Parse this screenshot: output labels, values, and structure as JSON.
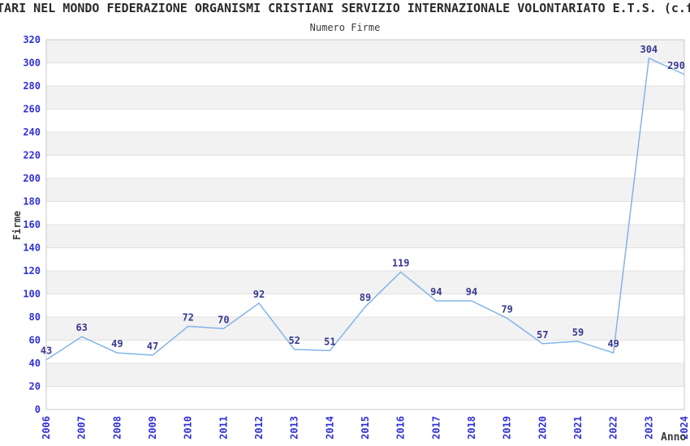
{
  "header": {
    "title": "TARI NEL MONDO FEDERAZIONE ORGANISMI CRISTIANI SERVIZIO INTERNAZIONALE VOLONTARIATO E.T.S. (c.f"
  },
  "chart_data": {
    "type": "line",
    "title": "Numero Firme",
    "xlabel": "Anno",
    "ylabel": "Firme",
    "x": [
      "2006",
      "2007",
      "2008",
      "2009",
      "2010",
      "2011",
      "2012",
      "2013",
      "2014",
      "2015",
      "2016",
      "2017",
      "2018",
      "2019",
      "2020",
      "2021",
      "2022",
      "2023",
      "2024"
    ],
    "series": [
      {
        "name": "Numero Firme",
        "values": [
          43,
          63,
          49,
          47,
          72,
          70,
          92,
          52,
          51,
          89,
          119,
          94,
          94,
          79,
          57,
          59,
          49,
          304,
          290
        ]
      }
    ],
    "ylim": [
      0,
      320
    ],
    "ytick_step": 20,
    "grid": true,
    "legend": "none",
    "stripe_bands": true,
    "colors": {
      "line": "#82b4e8",
      "tick_label": "#3030d8",
      "data_label": "#383890",
      "axis_text": "#3a3a3a",
      "stripe": "#f2f2f2",
      "gridline": "#e1e1e1",
      "border": "#c8c8c8",
      "background": "#ffffff"
    }
  }
}
